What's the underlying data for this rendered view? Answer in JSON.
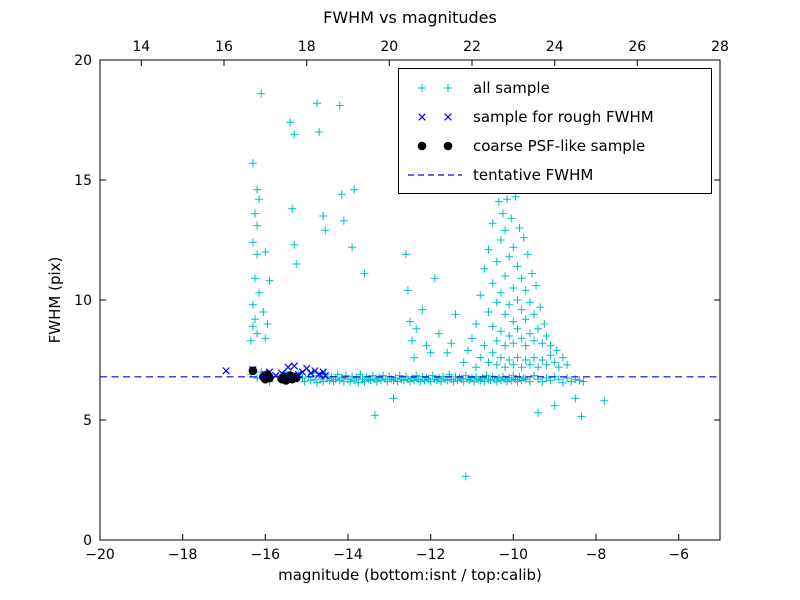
{
  "legend": {
    "items": [
      {
        "label": "all sample",
        "marker": "plus",
        "color": "#00bfbf"
      },
      {
        "label": "sample for rough FWHM",
        "marker": "x",
        "color": "#0000ff"
      },
      {
        "label": "coarse PSF-like sample",
        "marker": "dot",
        "color": "#000000"
      },
      {
        "label": "tentative FWHM",
        "marker": "dashed",
        "color": "#0000ff"
      }
    ]
  },
  "chart_data": {
    "type": "scatter",
    "title": "FWHM vs magnitudes",
    "xlabel": "magnitude (bottom:isnt / top:calib)",
    "ylabel": "FWHM (pix)",
    "xlim": [
      -20,
      -5
    ],
    "ylim": [
      0,
      20
    ],
    "x_ticks_bottom": [
      -20,
      -18,
      -16,
      -14,
      -12,
      -10,
      -8,
      -6
    ],
    "x_ticks_top": [
      14,
      16,
      18,
      20,
      22,
      24,
      26,
      28
    ],
    "top_axis_offset": 33,
    "y_ticks": [
      0,
      5,
      10,
      15,
      20
    ],
    "tentative_fwhm": 6.8,
    "series": [
      {
        "name": "all sample",
        "marker": "plus",
        "color": "#00bfbf",
        "points": [
          [
            -16.35,
            6.9
          ],
          [
            -16.2,
            6.75
          ],
          [
            -16.1,
            7.0
          ],
          [
            -15.9,
            6.6
          ],
          [
            -15.7,
            6.8
          ],
          [
            -15.5,
            7.0
          ],
          [
            -15.35,
            6.7
          ],
          [
            -15.2,
            6.9
          ],
          [
            -15.1,
            6.75
          ],
          [
            -15.05,
            6.6
          ],
          [
            -14.95,
            6.8
          ],
          [
            -14.9,
            6.65
          ],
          [
            -14.85,
            6.95
          ],
          [
            -14.8,
            6.7
          ],
          [
            -14.75,
            6.55
          ],
          [
            -14.7,
            6.85
          ],
          [
            -14.65,
            6.7
          ],
          [
            -14.6,
            6.6
          ],
          [
            -14.55,
            6.9
          ],
          [
            -14.5,
            6.75
          ],
          [
            -14.45,
            6.65
          ],
          [
            -14.4,
            6.8
          ],
          [
            -14.35,
            6.6
          ],
          [
            -14.3,
            6.7
          ],
          [
            -14.25,
            6.9
          ],
          [
            -14.2,
            6.65
          ],
          [
            -14.15,
            6.75
          ],
          [
            -14.1,
            6.6
          ],
          [
            -14.05,
            6.85
          ],
          [
            -14.0,
            6.7
          ],
          [
            -13.95,
            6.6
          ],
          [
            -13.9,
            6.8
          ],
          [
            -13.85,
            6.65
          ],
          [
            -13.8,
            6.75
          ],
          [
            -13.75,
            6.55
          ],
          [
            -13.7,
            6.9
          ],
          [
            -13.65,
            6.7
          ],
          [
            -13.6,
            6.6
          ],
          [
            -13.55,
            6.8
          ],
          [
            -13.5,
            6.7
          ],
          [
            -13.45,
            6.65
          ],
          [
            -13.4,
            6.85
          ],
          [
            -13.35,
            6.7
          ],
          [
            -13.3,
            6.6
          ],
          [
            -13.25,
            6.75
          ],
          [
            -13.2,
            6.65
          ],
          [
            -13.15,
            6.85
          ],
          [
            -13.1,
            6.7
          ],
          [
            -13.05,
            6.6
          ],
          [
            -13.0,
            6.8
          ],
          [
            -12.95,
            6.7
          ],
          [
            -12.9,
            6.65
          ],
          [
            -12.85,
            6.75
          ],
          [
            -12.8,
            6.6
          ],
          [
            -12.75,
            6.85
          ],
          [
            -12.7,
            6.7
          ],
          [
            -12.65,
            6.65
          ],
          [
            -12.6,
            6.8
          ],
          [
            -12.55,
            6.7
          ],
          [
            -12.5,
            6.6
          ],
          [
            -12.45,
            6.75
          ],
          [
            -12.4,
            6.65
          ],
          [
            -12.35,
            6.85
          ],
          [
            -12.3,
            6.7
          ],
          [
            -12.25,
            6.6
          ],
          [
            -12.2,
            6.8
          ],
          [
            -12.15,
            6.65
          ],
          [
            -12.1,
            6.75
          ],
          [
            -12.05,
            6.7
          ],
          [
            -12.0,
            6.6
          ],
          [
            -11.95,
            6.85
          ],
          [
            -11.9,
            6.7
          ],
          [
            -11.85,
            6.65
          ],
          [
            -11.8,
            6.75
          ],
          [
            -11.75,
            6.6
          ],
          [
            -11.7,
            6.8
          ],
          [
            -11.65,
            6.7
          ],
          [
            -11.6,
            6.65
          ],
          [
            -11.55,
            6.9
          ],
          [
            -11.5,
            6.7
          ],
          [
            -11.45,
            6.6
          ],
          [
            -11.4,
            6.8
          ],
          [
            -11.35,
            6.65
          ],
          [
            -11.3,
            6.75
          ],
          [
            -11.25,
            6.7
          ],
          [
            -11.2,
            6.6
          ],
          [
            -11.15,
            6.85
          ],
          [
            -11.1,
            6.7
          ],
          [
            -11.05,
            6.65
          ],
          [
            -11.0,
            6.75
          ],
          [
            -10.95,
            6.6
          ],
          [
            -10.9,
            6.8
          ],
          [
            -10.85,
            6.7
          ],
          [
            -10.8,
            6.65
          ],
          [
            -10.75,
            6.75
          ],
          [
            -10.7,
            6.6
          ],
          [
            -10.65,
            6.85
          ],
          [
            -10.6,
            6.7
          ],
          [
            -10.55,
            6.65
          ],
          [
            -10.5,
            6.8
          ],
          [
            -10.45,
            6.7
          ],
          [
            -10.4,
            6.6
          ],
          [
            -10.35,
            6.75
          ],
          [
            -10.3,
            6.65
          ],
          [
            -10.25,
            6.8
          ],
          [
            -10.2,
            6.7
          ],
          [
            -10.15,
            6.6
          ],
          [
            -10.1,
            6.75
          ],
          [
            -10.05,
            6.65
          ],
          [
            -10.0,
            6.85
          ],
          [
            -9.95,
            6.7
          ],
          [
            -9.9,
            6.6
          ],
          [
            -9.85,
            6.8
          ],
          [
            -9.8,
            6.65
          ],
          [
            -9.75,
            6.75
          ],
          [
            -9.7,
            6.7
          ],
          [
            -9.6,
            6.6
          ],
          [
            -9.5,
            6.85
          ],
          [
            -9.4,
            6.7
          ],
          [
            -9.3,
            6.6
          ],
          [
            -9.2,
            6.75
          ],
          [
            -9.1,
            6.65
          ],
          [
            -9.0,
            6.8
          ],
          [
            -8.9,
            6.7
          ],
          [
            -8.8,
            6.55
          ],
          [
            -8.7,
            6.75
          ],
          [
            -8.6,
            6.6
          ],
          [
            -8.5,
            6.7
          ],
          [
            -8.4,
            6.65
          ],
          [
            -8.3,
            6.6
          ],
          [
            -7.8,
            5.8
          ],
          [
            -16.35,
            8.3
          ],
          [
            -16.3,
            8.9
          ],
          [
            -16.25,
            9.2
          ],
          [
            -16.2,
            8.6
          ],
          [
            -16.3,
            9.8
          ],
          [
            -16.15,
            10.3
          ],
          [
            -16.25,
            10.9
          ],
          [
            -16.2,
            11.9
          ],
          [
            -16.3,
            12.4
          ],
          [
            -16.2,
            13.1
          ],
          [
            -16.25,
            13.6
          ],
          [
            -16.15,
            14.2
          ],
          [
            -16.2,
            14.6
          ],
          [
            -16.3,
            15.7
          ],
          [
            -16.1,
            18.6
          ],
          [
            -16.0,
            8.4
          ],
          [
            -15.95,
            9.0
          ],
          [
            -16.05,
            9.5
          ],
          [
            -15.9,
            10.8
          ],
          [
            -16.0,
            12.0
          ],
          [
            -15.4,
            17.4
          ],
          [
            -15.3,
            16.9
          ],
          [
            -15.35,
            13.8
          ],
          [
            -15.3,
            12.3
          ],
          [
            -15.25,
            11.5
          ],
          [
            -14.75,
            18.2
          ],
          [
            -14.7,
            17.0
          ],
          [
            -14.6,
            13.5
          ],
          [
            -14.55,
            12.9
          ],
          [
            -14.2,
            18.1
          ],
          [
            -14.15,
            14.4
          ],
          [
            -14.1,
            13.3
          ],
          [
            -13.9,
            12.2
          ],
          [
            -13.85,
            14.6
          ],
          [
            -13.6,
            11.1
          ],
          [
            -12.6,
            11.9
          ],
          [
            -12.55,
            10.4
          ],
          [
            -12.5,
            9.1
          ],
          [
            -12.45,
            8.3
          ],
          [
            -12.4,
            7.6
          ],
          [
            -12.35,
            8.8
          ],
          [
            -12.2,
            9.6
          ],
          [
            -12.1,
            8.1
          ],
          [
            -12.0,
            7.8
          ],
          [
            -11.9,
            10.9
          ],
          [
            -11.8,
            8.6
          ],
          [
            -11.6,
            7.8
          ],
          [
            -11.5,
            8.2
          ],
          [
            -11.4,
            9.4
          ],
          [
            -11.2,
            7.4
          ],
          [
            -11.1,
            7.9
          ],
          [
            -11.0,
            8.4
          ],
          [
            -10.9,
            7.2
          ],
          [
            -10.9,
            9.0
          ],
          [
            -10.8,
            7.6
          ],
          [
            -10.8,
            10.2
          ],
          [
            -10.7,
            8.1
          ],
          [
            -10.7,
            11.3
          ],
          [
            -10.6,
            7.4
          ],
          [
            -10.6,
            9.5
          ],
          [
            -10.6,
            12.1
          ],
          [
            -10.5,
            7.8
          ],
          [
            -10.5,
            8.9
          ],
          [
            -10.5,
            10.7
          ],
          [
            -10.5,
            13.2
          ],
          [
            -10.4,
            7.3
          ],
          [
            -10.4,
            8.3
          ],
          [
            -10.4,
            9.9
          ],
          [
            -10.4,
            11.6
          ],
          [
            -10.35,
            14.1
          ],
          [
            -10.3,
            7.6
          ],
          [
            -10.3,
            8.7
          ],
          [
            -10.3,
            10.3
          ],
          [
            -10.3,
            12.5
          ],
          [
            -10.25,
            13.6
          ],
          [
            -10.2,
            7.2
          ],
          [
            -10.2,
            8.1
          ],
          [
            -10.2,
            9.4
          ],
          [
            -10.2,
            11.0
          ],
          [
            -10.2,
            12.9
          ],
          [
            -10.15,
            14.2
          ],
          [
            -10.1,
            7.5
          ],
          [
            -10.1,
            8.5
          ],
          [
            -10.1,
            9.8
          ],
          [
            -10.1,
            11.8
          ],
          [
            -10.05,
            13.4
          ],
          [
            -10.0,
            7.3
          ],
          [
            -10.0,
            8.2
          ],
          [
            -10.0,
            9.1
          ],
          [
            -10.0,
            10.5
          ],
          [
            -10.0,
            12.2
          ],
          [
            -9.95,
            14.3
          ],
          [
            -9.9,
            7.6
          ],
          [
            -9.9,
            8.8
          ],
          [
            -9.9,
            10.0
          ],
          [
            -9.9,
            11.4
          ],
          [
            -9.85,
            13.0
          ],
          [
            -9.8,
            7.2
          ],
          [
            -9.8,
            8.4
          ],
          [
            -9.8,
            9.6
          ],
          [
            -9.8,
            10.9
          ],
          [
            -9.75,
            12.6
          ],
          [
            -9.7,
            7.5
          ],
          [
            -9.7,
            8.1
          ],
          [
            -9.7,
            9.2
          ],
          [
            -9.7,
            10.4
          ],
          [
            -9.65,
            11.9
          ],
          [
            -9.6,
            7.3
          ],
          [
            -9.6,
            8.6
          ],
          [
            -9.6,
            9.9
          ],
          [
            -9.55,
            11.1
          ],
          [
            -9.5,
            7.6
          ],
          [
            -9.5,
            8.3
          ],
          [
            -9.5,
            9.4
          ],
          [
            -9.45,
            10.6
          ],
          [
            -9.4,
            7.2
          ],
          [
            -9.4,
            8.8
          ],
          [
            -9.35,
            9.7
          ],
          [
            -9.3,
            7.5
          ],
          [
            -9.3,
            8.2
          ],
          [
            -9.25,
            9.0
          ],
          [
            -9.2,
            7.3
          ],
          [
            -9.2,
            8.5
          ],
          [
            -9.1,
            7.7
          ],
          [
            -9.1,
            8.1
          ],
          [
            -9.0,
            7.4
          ],
          [
            -8.95,
            7.9
          ],
          [
            -8.9,
            7.2
          ],
          [
            -8.8,
            7.6
          ],
          [
            -8.7,
            7.3
          ],
          [
            -13.35,
            5.2
          ],
          [
            -12.9,
            5.9
          ],
          [
            -9.4,
            5.3
          ],
          [
            -9.0,
            5.6
          ],
          [
            -8.5,
            5.9
          ],
          [
            -11.15,
            2.65
          ],
          [
            -8.35,
            5.15
          ]
        ]
      },
      {
        "name": "sample for rough FWHM",
        "marker": "x",
        "color": "#0000ff",
        "points": [
          [
            -16.95,
            7.05
          ],
          [
            -16.3,
            7.1
          ],
          [
            -16.0,
            6.9
          ],
          [
            -15.9,
            7.0
          ],
          [
            -15.75,
            6.85
          ],
          [
            -15.6,
            6.95
          ],
          [
            -15.45,
            7.2
          ],
          [
            -15.3,
            7.25
          ],
          [
            -15.2,
            6.9
          ],
          [
            -15.1,
            7.0
          ],
          [
            -15.0,
            7.15
          ],
          [
            -14.9,
            6.95
          ],
          [
            -14.8,
            7.05
          ],
          [
            -14.7,
            6.9
          ],
          [
            -14.6,
            7.0
          ],
          [
            -14.55,
            6.85
          ]
        ]
      },
      {
        "name": "coarse PSF-like sample",
        "marker": "dot",
        "color": "#000000",
        "points": [
          [
            -16.3,
            7.05
          ],
          [
            -16.05,
            6.8
          ],
          [
            -16.0,
            6.7
          ],
          [
            -15.95,
            6.9
          ],
          [
            -15.9,
            6.75
          ],
          [
            -15.6,
            6.7
          ],
          [
            -15.55,
            6.8
          ],
          [
            -15.5,
            6.65
          ],
          [
            -15.45,
            6.75
          ],
          [
            -15.4,
            6.85
          ],
          [
            -15.35,
            6.7
          ],
          [
            -15.3,
            6.8
          ],
          [
            -15.25,
            6.75
          ]
        ]
      },
      {
        "name": "tentative FWHM",
        "type": "hline",
        "color": "#0000ff",
        "y": 6.8
      }
    ]
  }
}
